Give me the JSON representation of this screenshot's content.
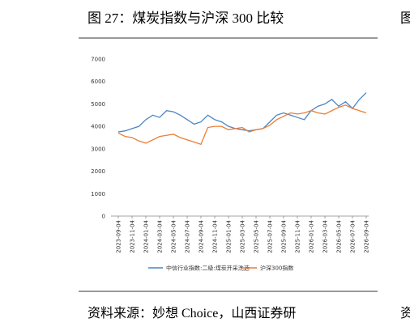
{
  "title": "图 27：煤炭指数与沪深 300 比较",
  "source": "资料来源：妙想 Choice，山西证券研",
  "side_fragments": [
    "图",
    "资"
  ],
  "chart_data": {
    "type": "line",
    "categories": [
      "2023-09-04",
      null,
      "2023-11-04",
      null,
      "2024-01-04",
      null,
      "2024-03-04",
      null,
      "2024-05-04",
      null,
      "2024-07-04",
      null,
      "2024-09-04",
      null,
      "2024-11-04",
      null,
      "2025-01-04",
      null,
      "2025-03-04",
      null,
      "2025-05-04",
      null,
      "2025-07-04",
      null,
      "2025-09-04",
      null,
      "2025-11-04",
      null,
      "2026-01-04",
      null,
      "2026-03-04",
      null,
      "2026-05-04",
      null,
      "2026-07-04",
      null,
      "2026-09-04"
    ],
    "series": [
      {
        "name": "中信行业指数:二级:煤炭开采洗选",
        "color": "#4a86c5",
        "values": [
          3750,
          3800,
          3900,
          4000,
          4300,
          4500,
          4400,
          4700,
          4650,
          4500,
          4300,
          4100,
          4200,
          4500,
          4300,
          4200,
          4000,
          3900,
          3850,
          3800,
          3850,
          3900,
          4200,
          4500,
          4600,
          4500,
          4400,
          4300,
          4700,
          4900,
          5000,
          5200,
          4900,
          5100,
          4800,
          5200,
          5500
        ]
      },
      {
        "name": "沪深300指数",
        "color": "#ed7d31",
        "values": [
          3700,
          3550,
          3500,
          3350,
          3250,
          3400,
          3550,
          3600,
          3650,
          3500,
          3400,
          3300,
          3200,
          3950,
          4000,
          4000,
          3850,
          3900,
          3950,
          3750,
          3850,
          3900,
          4050,
          4300,
          4450,
          4600,
          4550,
          4600,
          4700,
          4600,
          4550,
          4700,
          4850,
          4950,
          4800,
          4700,
          4600
        ]
      }
    ],
    "ylim": [
      0,
      7000
    ],
    "yticks": [
      0,
      1000,
      2000,
      3000,
      4000,
      5000,
      6000,
      7000
    ],
    "grid": false,
    "legend": "bottom"
  }
}
